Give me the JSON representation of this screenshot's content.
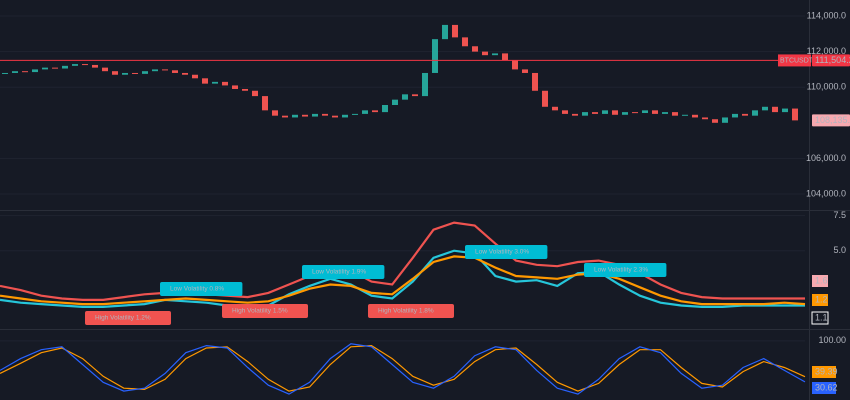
{
  "chart_data": [
    {
      "type": "candlestick",
      "symbol": "BTCUSDT.P",
      "ref_line": {
        "value": 111504.2,
        "label": "111,504.2"
      },
      "last_price": {
        "value": 108135.6,
        "label": "108,135.6"
      },
      "values": [
        110800,
        110900,
        110850,
        111000,
        111100,
        111050,
        111200,
        111300,
        111250,
        111100,
        110900,
        110700,
        110800,
        110750,
        110900,
        111000,
        110950,
        110800,
        110700,
        110500,
        110200,
        110300,
        110100,
        109900,
        109800,
        109500,
        108700,
        108400,
        108300,
        108450,
        108350,
        108500,
        108400,
        108300,
        108450,
        108500,
        108700,
        108600,
        109000,
        109300,
        109600,
        109500,
        110800,
        112700,
        113500,
        112800,
        112300,
        112000,
        111800,
        111900,
        111500,
        111000,
        110800,
        109800,
        108900,
        108700,
        108500,
        108400,
        108600,
        108500,
        108700,
        108450,
        108600,
        108550,
        108700,
        108500,
        108600,
        108400,
        108450,
        108300,
        108200,
        108000,
        108300,
        108500,
        108400,
        108700,
        108900,
        108600,
        108800,
        108135.6
      ],
      "up_color": "#26a69a",
      "down_color": "#ef5350",
      "ref_color": "#f23645",
      "ylim": [
        103100,
        114900
      ],
      "yticks": [
        {
          "value": 104000,
          "label": "104,000.0"
        },
        {
          "value": 106000,
          "label": "106,000.0"
        },
        {
          "value": 110000,
          "label": "110,000.0"
        },
        {
          "value": 112000,
          "label": "112,000.0"
        },
        {
          "value": 114000,
          "label": "114,000.0"
        }
      ]
    },
    {
      "type": "line",
      "series": [
        {
          "color": "#26c6da",
          "values": [
            1.5,
            1.3,
            1.2,
            1.1,
            1.0,
            1.0,
            1.1,
            1.2,
            1.5,
            1.4,
            1.3,
            1.1,
            1.0,
            1.1,
            1.9,
            2.5,
            3.0,
            2.6,
            1.8,
            1.6,
            2.8,
            4.5,
            5.0,
            4.8,
            3.2,
            2.8,
            2.9,
            2.5,
            3.4,
            3.5,
            2.6,
            1.8,
            1.3,
            1.1,
            1.0,
            1.0,
            1.1,
            1.1,
            1.1,
            1.1
          ]
        },
        {
          "color": "#ff9800",
          "values": [
            1.8,
            1.6,
            1.4,
            1.3,
            1.2,
            1.2,
            1.3,
            1.4,
            1.5,
            1.6,
            1.5,
            1.4,
            1.3,
            1.4,
            1.8,
            2.3,
            2.6,
            2.5,
            2.0,
            1.9,
            3.0,
            4.2,
            4.6,
            4.5,
            3.8,
            3.2,
            3.1,
            3.0,
            3.3,
            3.4,
            3.0,
            2.4,
            1.8,
            1.4,
            1.2,
            1.2,
            1.2,
            1.2,
            1.3,
            1.2
          ]
        },
        {
          "color": "#ef5350",
          "values": [
            2.5,
            2.2,
            1.8,
            1.6,
            1.5,
            1.5,
            1.7,
            1.9,
            2.0,
            2.0,
            1.9,
            1.8,
            1.7,
            2.0,
            2.6,
            3.2,
            3.6,
            3.6,
            2.8,
            2.6,
            4.5,
            6.5,
            7.0,
            6.8,
            5.5,
            4.3,
            4.0,
            3.9,
            4.2,
            4.3,
            4.0,
            3.4,
            2.6,
            2.0,
            1.7,
            1.6,
            1.6,
            1.6,
            1.6,
            1.6
          ]
        }
      ],
      "ylim": [
        -0.5,
        7.9
      ],
      "yticks": [
        {
          "value": 5,
          "label": "5.0"
        },
        7.5
      ],
      "annotations": [
        {
          "text": "High Volatility 1.2%",
          "color": "#f05350"
        },
        {
          "text": "Low Volatility 0.8%",
          "color": "#00bcd4"
        },
        {
          "text": "High Volatility 1.5%",
          "color": "#f05350"
        },
        {
          "text": "Low Volatility 1.9%",
          "color": "#00bcd4"
        },
        {
          "text": "High Volatility 1.8%",
          "color": "#f05350"
        },
        {
          "text": "Low Volatility 3.0%",
          "color": "#00bcd4"
        },
        {
          "text": "Low Volatility 2.3%",
          "color": "#00bcd4"
        }
      ]
    },
    {
      "type": "line",
      "series": [
        {
          "color": "#ff9800",
          "values": [
            45,
            62,
            80,
            88,
            70,
            40,
            20,
            18,
            35,
            70,
            88,
            90,
            65,
            35,
            15,
            22,
            60,
            90,
            92,
            70,
            40,
            25,
            35,
            65,
            85,
            88,
            60,
            30,
            15,
            28,
            60,
            85,
            85,
            55,
            28,
            22,
            48,
            65,
            55,
            39.39
          ]
        },
        {
          "color": "#2962ff",
          "values": [
            50,
            70,
            85,
            90,
            60,
            30,
            15,
            20,
            45,
            80,
            92,
            88,
            55,
            25,
            10,
            30,
            70,
            95,
            90,
            60,
            30,
            20,
            40,
            75,
            90,
            85,
            50,
            20,
            10,
            35,
            70,
            90,
            80,
            45,
            20,
            25,
            55,
            70,
            50,
            30.62
          ]
        }
      ],
      "ylim": [
        0,
        115
      ],
      "yticks": [
        {
          "value": 100,
          "label": "100.00"
        }
      ]
    }
  ]
}
